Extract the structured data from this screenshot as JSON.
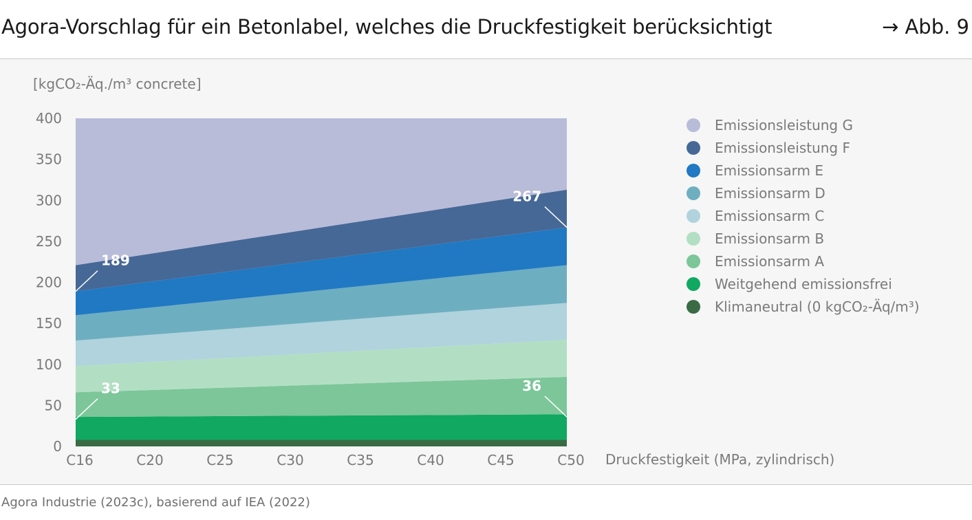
{
  "header": {
    "title": "Agora-Vorschlag für ein Betonlabel, welches die Druckfestigkeit berücksichtigt",
    "figure_ref": "→ Abb. 9"
  },
  "footer": {
    "source": "Agora Industrie (2023c), basierend auf IEA (2022)"
  },
  "chart_data": {
    "type": "area",
    "ylabel": "[kgCO₂-Äq./m³ concrete]",
    "xlabel": "Druckfestigkeit (MPa, zylindrisch)",
    "categories": [
      "C16",
      "C20",
      "C25",
      "C30",
      "C35",
      "C40",
      "C45",
      "C50"
    ],
    "y_ticks": [
      0,
      50,
      100,
      150,
      200,
      250,
      300,
      350,
      400
    ],
    "ylim": [
      0,
      400
    ],
    "grid": false,
    "legend_position": "right",
    "stacking": "cumulative upper bounds, linear from C16 to C50",
    "series": [
      {
        "name": "Klimaneutral (0 kgCO₂-Äq/m³)",
        "color": "#3a6b45",
        "upper": [
          8,
          8,
          8,
          8,
          8,
          8,
          8,
          8
        ]
      },
      {
        "name": "Weitgehend emissionsfrei",
        "color": "#11a862",
        "upper": [
          36,
          36.4,
          36.9,
          37.3,
          37.8,
          38.2,
          38.7,
          39.1
        ]
      },
      {
        "name": "Emissionsarm A",
        "color": "#7cc69a",
        "upper": [
          66,
          68.6,
          71.3,
          74,
          76.7,
          79.4,
          82,
          84.8
        ]
      },
      {
        "name": "Emissionsarm B",
        "color": "#b2dfc3",
        "upper": [
          98,
          102.6,
          107.1,
          111.7,
          116.3,
          120.9,
          125.4,
          130
        ]
      },
      {
        "name": "Emissionsarm C",
        "color": "#b0d3dd",
        "upper": [
          129,
          135.6,
          142.1,
          148.7,
          155.3,
          161.9,
          168.4,
          175
        ]
      },
      {
        "name": "Emissionsarm D",
        "color": "#6eaec1",
        "upper": [
          160,
          168.7,
          177.4,
          186.1,
          194.9,
          203.6,
          212.3,
          221
        ]
      },
      {
        "name": "Emissionsarm E",
        "color": "#2079c2",
        "upper": [
          189,
          200.1,
          211.3,
          222.4,
          233.6,
          244.7,
          255.9,
          267
        ]
      },
      {
        "name": "Emissionsleistung F",
        "color": "#466896",
        "upper": [
          221,
          234.1,
          247.3,
          260.4,
          273.6,
          286.7,
          299.9,
          313
        ]
      },
      {
        "name": "Emissionsleistung G",
        "color": "#b8bcd9",
        "upper": [
          400,
          400,
          400,
          400,
          400,
          400,
          400,
          400
        ]
      }
    ],
    "annotations": [
      {
        "label": "189",
        "category": "C16",
        "value": 189
      },
      {
        "label": "33",
        "category": "C16",
        "value": 33
      },
      {
        "label": "267",
        "category": "C50",
        "value": 267
      },
      {
        "label": "36",
        "category": "C50",
        "value": 36
      }
    ]
  }
}
